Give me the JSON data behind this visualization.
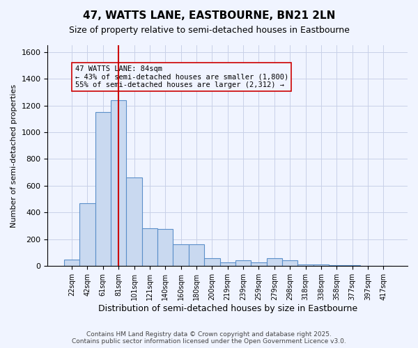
{
  "title1": "47, WATTS LANE, EASTBOURNE, BN21 2LN",
  "title2": "Size of property relative to semi-detached houses in Eastbourne",
  "xlabel": "Distribution of semi-detached houses by size in Eastbourne",
  "ylabel": "Number of semi-detached properties",
  "categories": [
    "22sqm",
    "42sqm",
    "61sqm",
    "81sqm",
    "101sqm",
    "121sqm",
    "140sqm",
    "160sqm",
    "180sqm",
    "200sqm",
    "219sqm",
    "239sqm",
    "259sqm",
    "279sqm",
    "298sqm",
    "318sqm",
    "338sqm",
    "358sqm",
    "377sqm",
    "397sqm",
    "417sqm"
  ],
  "values": [
    50,
    470,
    1150,
    1240,
    660,
    280,
    275,
    165,
    165,
    60,
    30,
    45,
    30,
    60,
    45,
    10,
    10,
    5,
    5,
    2,
    2
  ],
  "bar_color": "#c9d9f0",
  "bar_edge_color": "#5b8fc9",
  "vline_x": 3,
  "vline_color": "#cc0000",
  "annotation_text": "47 WATTS LANE: 84sqm\n← 43% of semi-detached houses are smaller (1,800)\n55% of semi-detached houses are larger (2,312) →",
  "annotation_fontsize": 7.5,
  "ylim": [
    0,
    1650
  ],
  "footer": "Contains HM Land Registry data © Crown copyright and database right 2025.\nContains public sector information licensed under the Open Government Licence v3.0.",
  "background_color": "#f0f4ff",
  "grid_color": "#c8d0e8"
}
